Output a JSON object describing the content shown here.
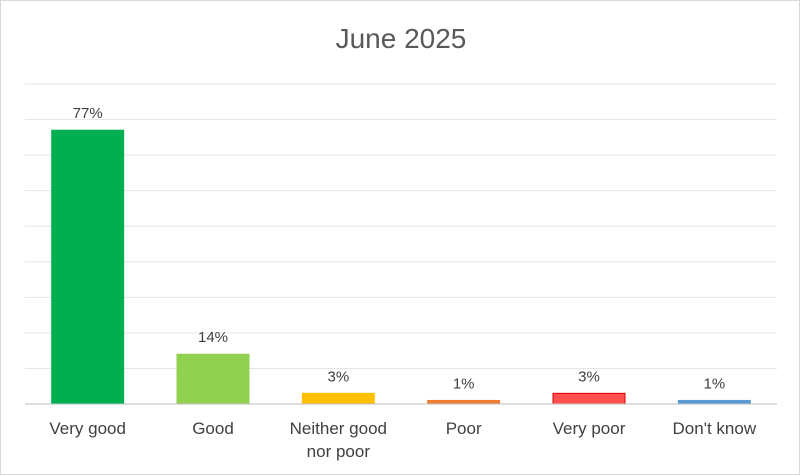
{
  "chart_data": {
    "type": "bar",
    "title": "June 2025",
    "categories": [
      "Very good",
      "Good",
      "Neither good nor poor",
      "Poor",
      "Very poor",
      "Don't know"
    ],
    "category_lines": [
      [
        "Very good"
      ],
      [
        "Good"
      ],
      [
        "Neither good",
        "nor poor"
      ],
      [
        "Poor"
      ],
      [
        "Very poor"
      ],
      [
        "Don't know"
      ]
    ],
    "values": [
      77,
      14,
      3,
      1,
      3,
      1
    ],
    "data_labels": [
      "77%",
      "14%",
      "3%",
      "1%",
      "3%",
      "1%"
    ],
    "bar_colors": [
      "#00b050",
      "#92d050",
      "#ffc000",
      "#ed7d31",
      "#ff5050",
      "#5b9bd5"
    ],
    "bar_edge_colors": [
      "#00b050",
      "#92d050",
      "#ffc000",
      "#ed7d31",
      "#e00000",
      "#5b9bd5"
    ],
    "ylim": [
      0,
      90
    ],
    "grid": true,
    "legend": "none"
  }
}
